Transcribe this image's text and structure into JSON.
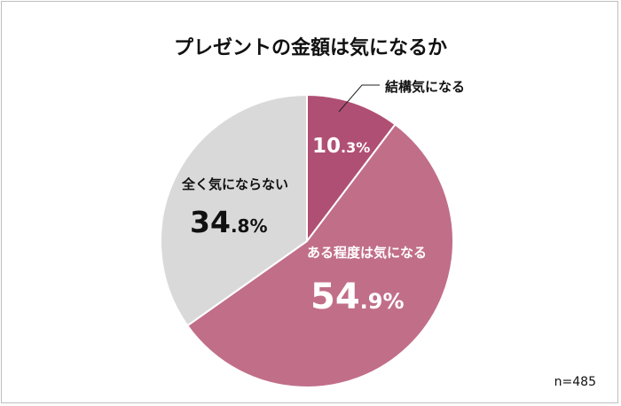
{
  "chart_data": {
    "type": "pie",
    "title": "プレゼントの金額は気になるか",
    "note": "n=485",
    "start_angle_deg": 0,
    "direction": "clockwise",
    "slices": [
      {
        "label": "結構気になる",
        "value": 10.3,
        "int_text": "10",
        "dec_text": ".3%",
        "color": "#b04f74"
      },
      {
        "label": "ある程度は気になる",
        "value": 54.9,
        "int_text": "54",
        "dec_text": ".9%",
        "color": "#c16e89"
      },
      {
        "label": "全く気にならない",
        "value": 34.8,
        "int_text": "34",
        "dec_text": ".8%",
        "color": "#d9d9d9"
      }
    ]
  }
}
